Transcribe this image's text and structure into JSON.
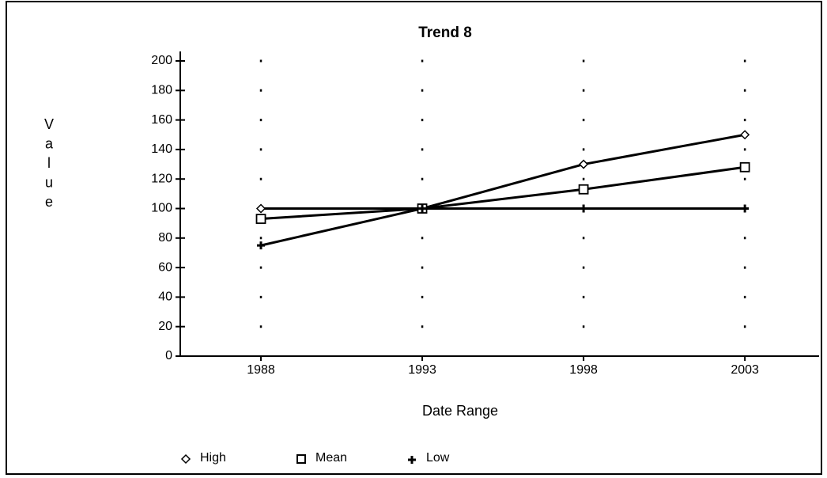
{
  "chart_data": {
    "type": "line",
    "title": "Trend 8",
    "x_label": "Date Range",
    "y_label": "Value",
    "x": [
      1988,
      1993,
      1998,
      2003
    ],
    "series": [
      {
        "name": "High",
        "color": "#000000",
        "marker": "diamond",
        "values": [
          100,
          100,
          130,
          150
        ]
      },
      {
        "name": "Mean",
        "color": "#000000",
        "marker": "square",
        "values": [
          93,
          100,
          113,
          128
        ]
      },
      {
        "name": "Low",
        "color": "#000000",
        "marker": "plus",
        "values": [
          75,
          100,
          100,
          100
        ]
      }
    ],
    "xlim": [
      1985.5,
      2005.3
    ],
    "xticks": [
      1988,
      1993,
      1998,
      2003
    ],
    "ylim": [
      0,
      200
    ],
    "yticks": [
      0,
      20,
      40,
      60,
      80,
      100,
      120,
      140,
      160,
      180,
      200
    ],
    "grid": true,
    "legend": "bottom"
  }
}
